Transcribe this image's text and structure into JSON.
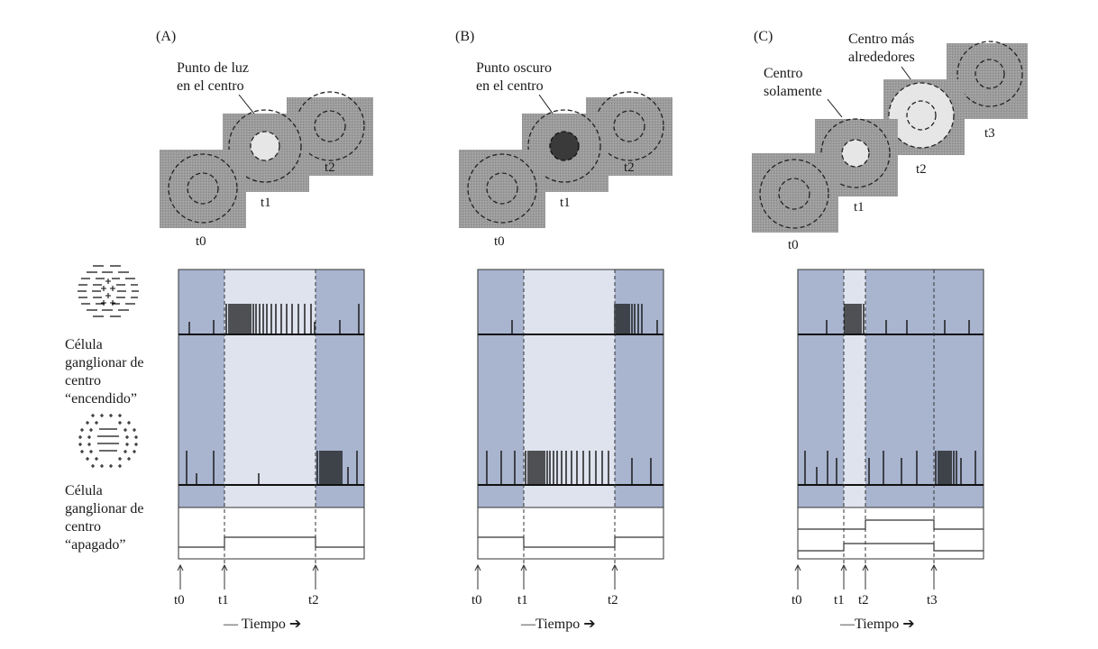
{
  "panels": [
    {
      "letter": "(A)",
      "callouts": [
        "Punto de luz",
        "en el centro"
      ],
      "stim_labels": [
        "t0",
        "t1",
        "t2"
      ],
      "time_labels": [
        "t0",
        "t1",
        "t2"
      ],
      "axis_label": "— Tiempo ➔"
    },
    {
      "letter": "(B)",
      "callouts": [
        "Punto oscuro",
        "en el centro"
      ],
      "stim_labels": [
        "t0",
        "t1",
        "t2"
      ],
      "time_labels": [
        "t0",
        "t1",
        "t2"
      ],
      "axis_label": "—Tiempo ➔"
    },
    {
      "letter": "(C)",
      "callouts": [
        "Centro",
        "solamente",
        "Centro más",
        "alrededores"
      ],
      "stim_labels": [
        "t0",
        "t1",
        "t2",
        "t3"
      ],
      "time_labels": [
        "t0",
        "t1",
        "t2",
        "t3"
      ],
      "axis_label": "—Tiempo ➔"
    }
  ],
  "legend": {
    "on_cell": [
      "Célula",
      "ganglionar de",
      "centro",
      "“encendido”"
    ],
    "off_cell": [
      "Célula",
      "ganglionar de",
      "centro",
      "“apagado”"
    ]
  },
  "colors": {
    "surround_gray": "#9a9a9a",
    "light_spot": "#e6e6e6",
    "dark_spot": "#3a3a3a",
    "blue_band": "#a9b5cf",
    "light_band": "#dfe3ee"
  }
}
